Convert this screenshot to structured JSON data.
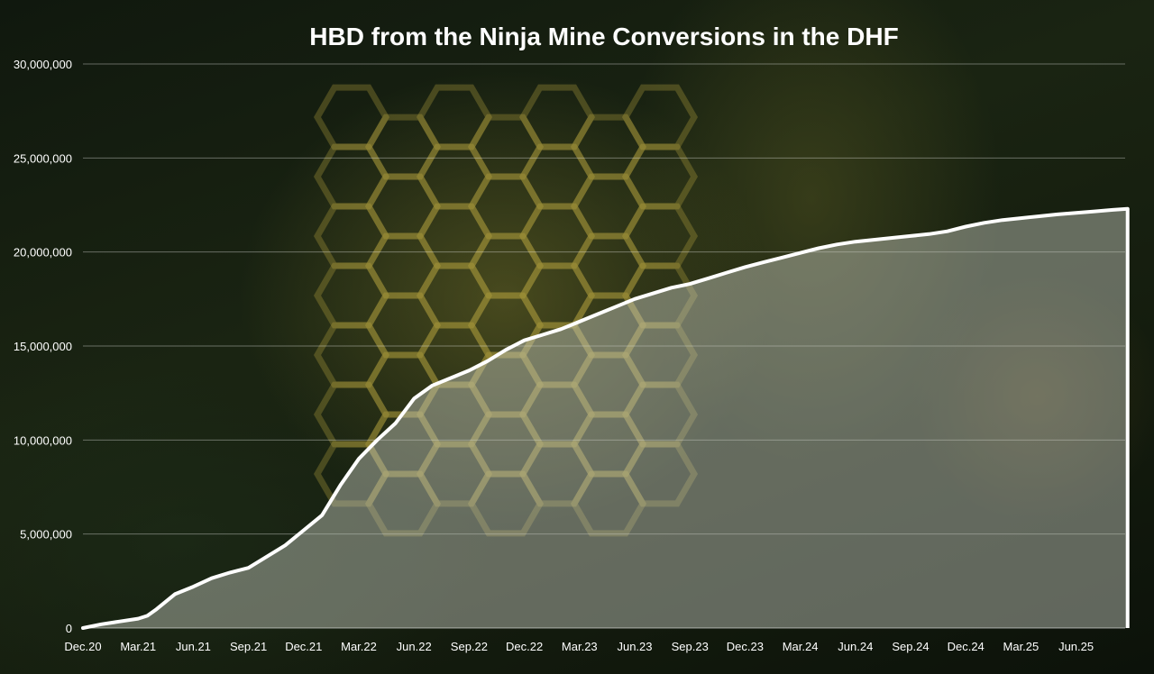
{
  "chart_data": {
    "type": "area",
    "title": "HBD from the Ninja Mine Conversions in the DHF",
    "xlabel": "",
    "ylabel": "",
    "ylim": [
      0,
      30000000
    ],
    "y_ticks": [
      {
        "value": 0,
        "label": "0"
      },
      {
        "value": 5000000,
        "label": "5,000,000"
      },
      {
        "value": 10000000,
        "label": "10,000,000"
      },
      {
        "value": 15000000,
        "label": "15,000,000"
      },
      {
        "value": 20000000,
        "label": "20,000,000"
      },
      {
        "value": 25000000,
        "label": "25,000,000"
      },
      {
        "value": 30000000,
        "label": "30,000,000"
      }
    ],
    "x_tick_labels": [
      "Dec.20",
      "Mar.21",
      "Jun.21",
      "Sep.21",
      "Dec.21",
      "Mar.22",
      "Jun.22",
      "Sep.22",
      "Dec.22",
      "Mar.23",
      "Jun.23",
      "Sep.23",
      "Dec.23",
      "Mar.24",
      "Jun.24",
      "Sep.24",
      "Dec.24",
      "Mar.25",
      "Jun.25"
    ],
    "grid": true,
    "series": [
      {
        "name": "HBD",
        "line_color": "#ffffff",
        "fill_color": "#c8cdc2",
        "x_months": [
          0,
          1,
          2,
          3,
          3.5,
          4,
          5,
          6,
          7,
          8,
          9,
          10,
          11,
          12,
          13,
          14,
          15,
          16,
          17,
          18,
          19,
          20,
          21,
          22,
          23,
          24,
          25,
          26,
          27,
          28,
          29,
          30,
          31,
          32,
          33,
          34,
          35,
          36,
          37,
          38,
          39,
          40,
          41,
          42,
          43,
          44,
          45,
          46,
          47,
          48,
          49,
          50,
          51,
          52,
          53,
          54,
          55,
          56,
          56.8
        ],
        "values": [
          0,
          200000,
          350000,
          500000,
          650000,
          1000000,
          1800000,
          2200000,
          2650000,
          2950000,
          3200000,
          3800000,
          4400000,
          5200000,
          6000000,
          7600000,
          9000000,
          10000000,
          10900000,
          12200000,
          12900000,
          13300000,
          13700000,
          14200000,
          14800000,
          15300000,
          15600000,
          15900000,
          16300000,
          16700000,
          17100000,
          17500000,
          17800000,
          18100000,
          18300000,
          18600000,
          18900000,
          19200000,
          19450000,
          19700000,
          19950000,
          20200000,
          20400000,
          20550000,
          20650000,
          20750000,
          20850000,
          20950000,
          21100000,
          21350000,
          21550000,
          21700000,
          21800000,
          21900000,
          22000000,
          22080000,
          22160000,
          22240000,
          22300000
        ]
      }
    ]
  }
}
